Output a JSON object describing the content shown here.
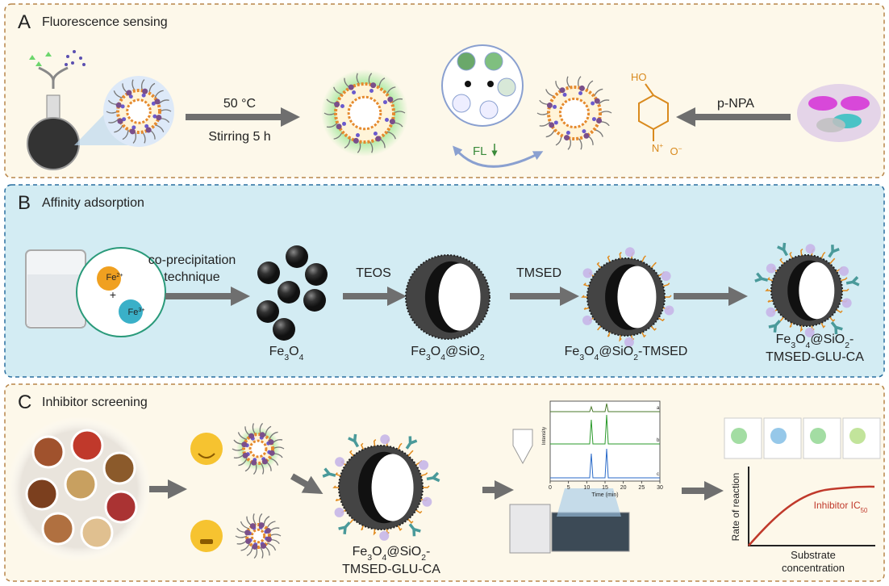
{
  "panel_a": {
    "letter": "A",
    "title": "Fluorescence sensing",
    "condition_temp": "50 °C",
    "condition_time": "Stirring 5 h",
    "fl_label": "FL",
    "substrate": "p-NPA",
    "chem_ho": "HO",
    "chem_n": [
      "N",
      "+"
    ],
    "chem_o": [
      "O",
      "−"
    ]
  },
  "panel_b": {
    "letter": "B",
    "title": "Affinity adsorption",
    "method": [
      "co-precipitation",
      "technique"
    ],
    "ion1": [
      "Fe",
      "2+"
    ],
    "ion2": [
      "Fe",
      "3+"
    ],
    "plus": "+",
    "reagent1": "TEOS",
    "reagent2": "TMSED",
    "products": [
      [
        [
          "Fe",
          "3",
          "O",
          "4"
        ]
      ],
      [
        [
          "Fe",
          "3",
          "O",
          "4",
          "@SiO",
          "2"
        ]
      ],
      [
        [
          "Fe",
          "3",
          "O",
          "4",
          "@SiO",
          "2",
          "-TMSED"
        ]
      ],
      [
        [
          "Fe",
          "3",
          "O",
          "4",
          "@SiO",
          "2",
          "-"
        ],
        [
          "TMSED-GLU-CA"
        ]
      ]
    ]
  },
  "panel_c": {
    "letter": "C",
    "title": "Inhibitor screening",
    "product": [
      [
        "Fe",
        "3",
        "O",
        "4",
        "@SiO",
        "2",
        "-"
      ],
      [
        "TMSED-GLU-CA"
      ]
    ],
    "chromatogram": {
      "trace_labels": [
        "a",
        "b",
        "c"
      ],
      "y_label": "Intensity",
      "x_label": "Time (min)",
      "xlim": [
        0,
        30
      ],
      "xticks": [
        0,
        5,
        10,
        15,
        20,
        25,
        30
      ]
    },
    "kinetics": {
      "curve_label": [
        "Inhibitor IC",
        "50"
      ],
      "y_label": "Rate of reaction",
      "x_label": [
        "Substrate",
        "concentration"
      ]
    }
  }
}
